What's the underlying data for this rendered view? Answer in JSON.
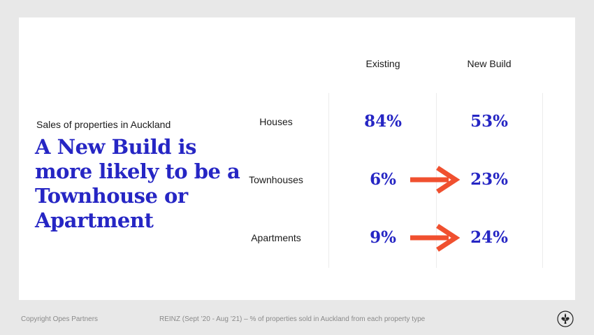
{
  "slide": {
    "subtitle": "Sales of properties in Auckland",
    "headline": "A New Build is more likely to be a Townhouse or Apartment"
  },
  "table": {
    "columns": [
      "Existing",
      "New Build"
    ],
    "rows": [
      {
        "label": "Houses",
        "existing": "84%",
        "new_build": "53%",
        "highlight": false
      },
      {
        "label": "Townhouses",
        "existing": "6%",
        "new_build": "23%",
        "highlight": true
      },
      {
        "label": "Apartments",
        "existing": "9%",
        "new_build": "24%",
        "highlight": true
      }
    ]
  },
  "footer": {
    "copyright": "Copyright Opes Partners",
    "source": "REINZ (Sept ’20 - Aug ’21) – % of properties sold in Auckland from each property type"
  },
  "icons": {
    "arrow": "arrow-right-icon",
    "logo": "fleur-de-lis-logo-icon"
  },
  "colors": {
    "accent": "#2626c4",
    "arrow": "#f0502f",
    "background": "#e8e8e8",
    "slide": "#ffffff"
  }
}
